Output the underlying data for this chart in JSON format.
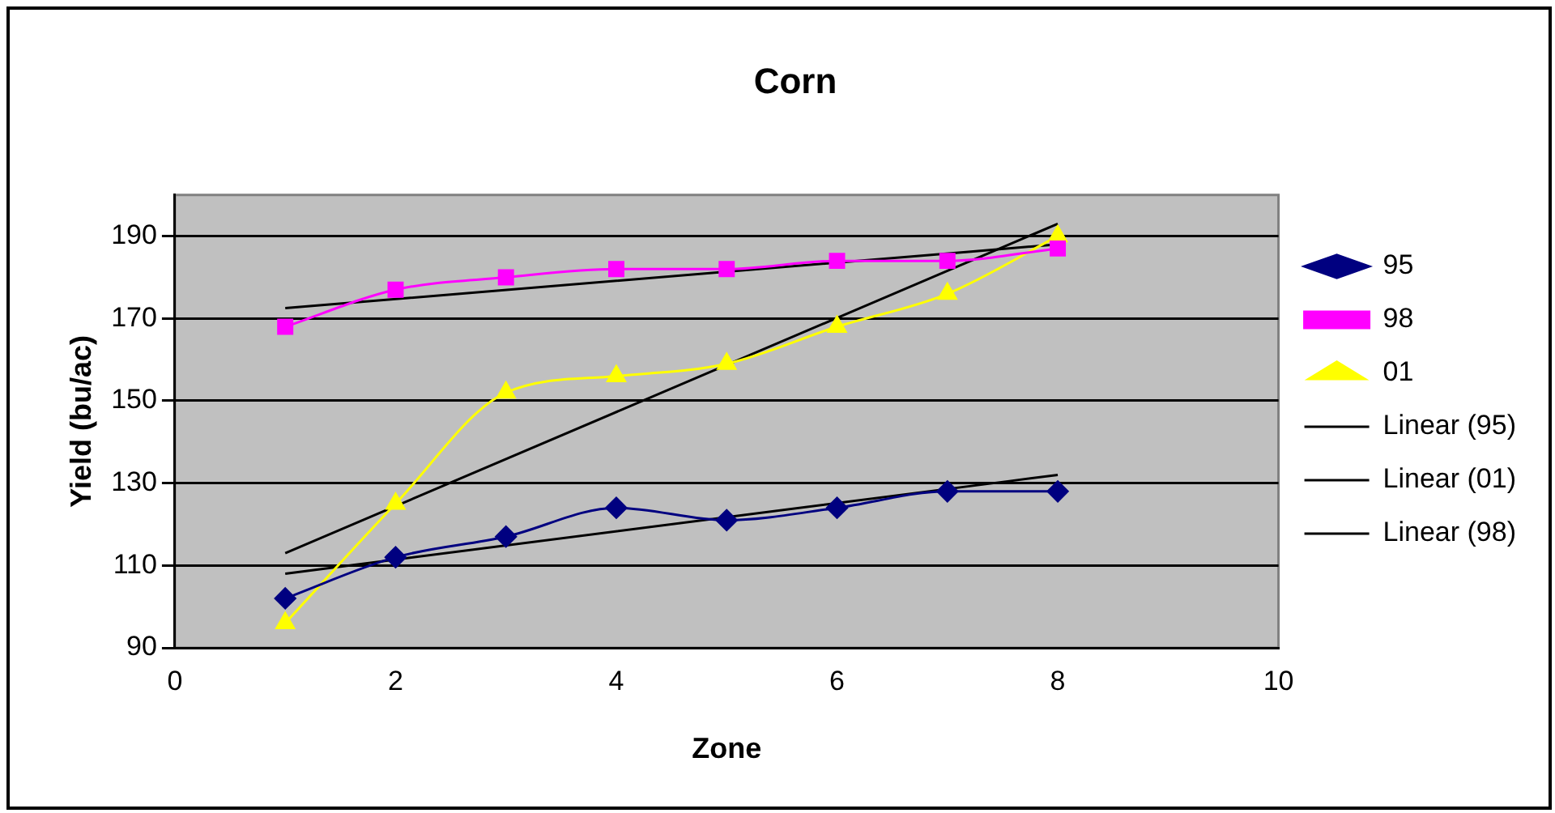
{
  "chart_data": {
    "type": "line",
    "title": "Corn",
    "xlabel": "Zone",
    "ylabel": "Yield (bu/ac)",
    "xlim": [
      0,
      10
    ],
    "xticks": [
      0,
      2,
      4,
      6,
      8,
      10
    ],
    "ylim": [
      90,
      200
    ],
    "yticks": [
      90,
      110,
      130,
      150,
      170,
      190
    ],
    "grid": "y",
    "legend": "right",
    "line_style": "solid",
    "series": [
      {
        "name": "95",
        "color": "#000080",
        "marker": "diamond",
        "x": [
          1,
          2,
          3,
          4,
          5,
          6,
          7,
          8
        ],
        "values": [
          102,
          112,
          117,
          124,
          121,
          124,
          128,
          128
        ]
      },
      {
        "name": "98",
        "color": "#ff00ff",
        "marker": "square",
        "x": [
          1,
          2,
          3,
          4,
          5,
          6,
          7,
          8
        ],
        "values": [
          168,
          177,
          180,
          182,
          182,
          184,
          184,
          187
        ]
      },
      {
        "name": "01",
        "color": "#ffff00",
        "marker": "triangle",
        "x": [
          1,
          2,
          3,
          4,
          5,
          6,
          7,
          8
        ],
        "values": [
          96,
          125,
          152,
          156,
          159,
          168,
          176,
          190
        ]
      },
      {
        "name": "Linear (95)",
        "color": "#000000",
        "marker": "none",
        "x": [
          1,
          8
        ],
        "values": [
          108,
          132
        ]
      },
      {
        "name": "Linear (01)",
        "color": "#000000",
        "marker": "none",
        "x": [
          1,
          8
        ],
        "values": [
          113,
          193
        ]
      },
      {
        "name": "Linear (98)",
        "color": "#000000",
        "marker": "none",
        "x": [
          1,
          8
        ],
        "values": [
          172.5,
          188
        ]
      }
    ]
  }
}
